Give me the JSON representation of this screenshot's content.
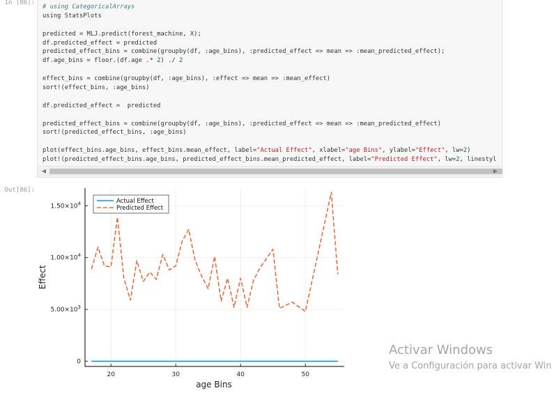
{
  "notebook": {
    "in_prompt": "In [86]:",
    "out_prompt": "Out[86]:"
  },
  "code_lines": [
    "# using CategoricalArrays",
    "using StatsPlots",
    "",
    "predicted = MLJ.predict(forest_machine, X);",
    "df.predicted_effect = predicted",
    "predicted_effect_bins = combine(groupby(df, :age_bins), :predicted_effect => mean => :mean_predicted_effect);",
    "df.age_bins = floor.(df.age .* 2) ./ 2",
    "",
    "effect_bins = combine(groupby(df, :age_bins), :effect => mean => :mean_effect)",
    "sort!(effect_bins, :age_bins)",
    "",
    "df.predicted_effect =  predicted",
    "",
    "predicted_effect_bins = combine(groupby(df, :age_bins), :predicted_effect => mean => :mean_predicted_effect)",
    "sort!(predicted_effect_bins, :age_bins)",
    "",
    "plot(effect_bins.age_bins, effect_bins.mean_effect, label=\"Actual Effect\", xlabel=\"age Bins\", ylabel=\"Effect\", lw=2)",
    "plot!(predicted_effect_bins.age_bins, predicted_effect_bins.mean_predicted_effect, label=\"Predicted Effect\", lw=2, linestyl"
  ],
  "watermark": {
    "title": "Activar Windows",
    "subtitle": "Ve a Configuración para activar Win"
  },
  "chart_data": {
    "type": "line",
    "xlabel": "age Bins",
    "ylabel": "Effect",
    "xlim": [
      16,
      56
    ],
    "ylim": [
      -500,
      16700
    ],
    "xticks": [
      20,
      30,
      40,
      50
    ],
    "xtick_labels": [
      "20",
      "30",
      "40",
      "50"
    ],
    "yticks": [
      0,
      5000,
      10000,
      15000
    ],
    "ytick_labels": [
      {
        "mant": "0",
        "exp": ""
      },
      {
        "mant": "5.00×10",
        "exp": "3"
      },
      {
        "mant": "1.00×10",
        "exp": "4"
      },
      {
        "mant": "1.50×10",
        "exp": "4"
      }
    ],
    "grid": true,
    "legend_position": "top-left",
    "series": [
      {
        "name": "Actual Effect",
        "color": "#009af9",
        "dash": "solid",
        "x": [
          17,
          55
        ],
        "y": [
          0,
          0
        ]
      },
      {
        "name": "Predicted Effect",
        "color": "#e26f46",
        "dash": "dashed",
        "x": [
          17,
          18,
          19,
          20,
          21,
          22,
          23,
          24,
          25,
          26,
          27,
          28,
          29,
          30,
          31,
          32,
          33,
          34,
          35,
          36,
          37,
          38,
          39,
          40,
          41,
          42,
          43,
          44,
          45,
          46,
          48,
          50,
          52,
          54,
          55
        ],
        "y": [
          8900,
          11000,
          9200,
          9100,
          13900,
          8000,
          5900,
          9700,
          7700,
          8600,
          7900,
          10300,
          8800,
          9200,
          11600,
          12700,
          9700,
          8200,
          7000,
          10100,
          5800,
          8000,
          5200,
          8000,
          5200,
          7800,
          9000,
          9900,
          10800,
          5100,
          5700,
          4800,
          10500,
          16300,
          8400
        ]
      }
    ]
  }
}
